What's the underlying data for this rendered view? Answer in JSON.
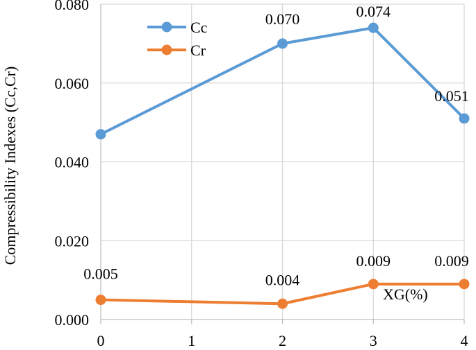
{
  "chart_data": {
    "type": "line",
    "title": "",
    "xlabel": "XG(%)",
    "ylabel": "Compressibility Indexes (Cc,Cr)",
    "x": [
      0,
      2,
      3,
      4
    ],
    "x_ticks": [
      "0",
      "1",
      "2",
      "3",
      "4"
    ],
    "x_range": [
      0,
      4
    ],
    "y_ticks": [
      "0.000",
      "0.020",
      "0.040",
      "0.060",
      "0.080"
    ],
    "ylim": [
      0,
      0.08
    ],
    "grid": "horizontal",
    "legend_position": "top-left",
    "series": [
      {
        "name": "Cc",
        "color": "#5B9BD5",
        "values": [
          0.047,
          0.07,
          0.074,
          0.051
        ],
        "labels": [
          "",
          "0.070",
          "0.074",
          "0.051"
        ]
      },
      {
        "name": "Cr",
        "color": "#ED7D31",
        "values": [
          0.005,
          0.004,
          0.009,
          0.009
        ],
        "labels": [
          "0.005",
          "0.004",
          "0.009",
          "0.009"
        ]
      }
    ]
  }
}
